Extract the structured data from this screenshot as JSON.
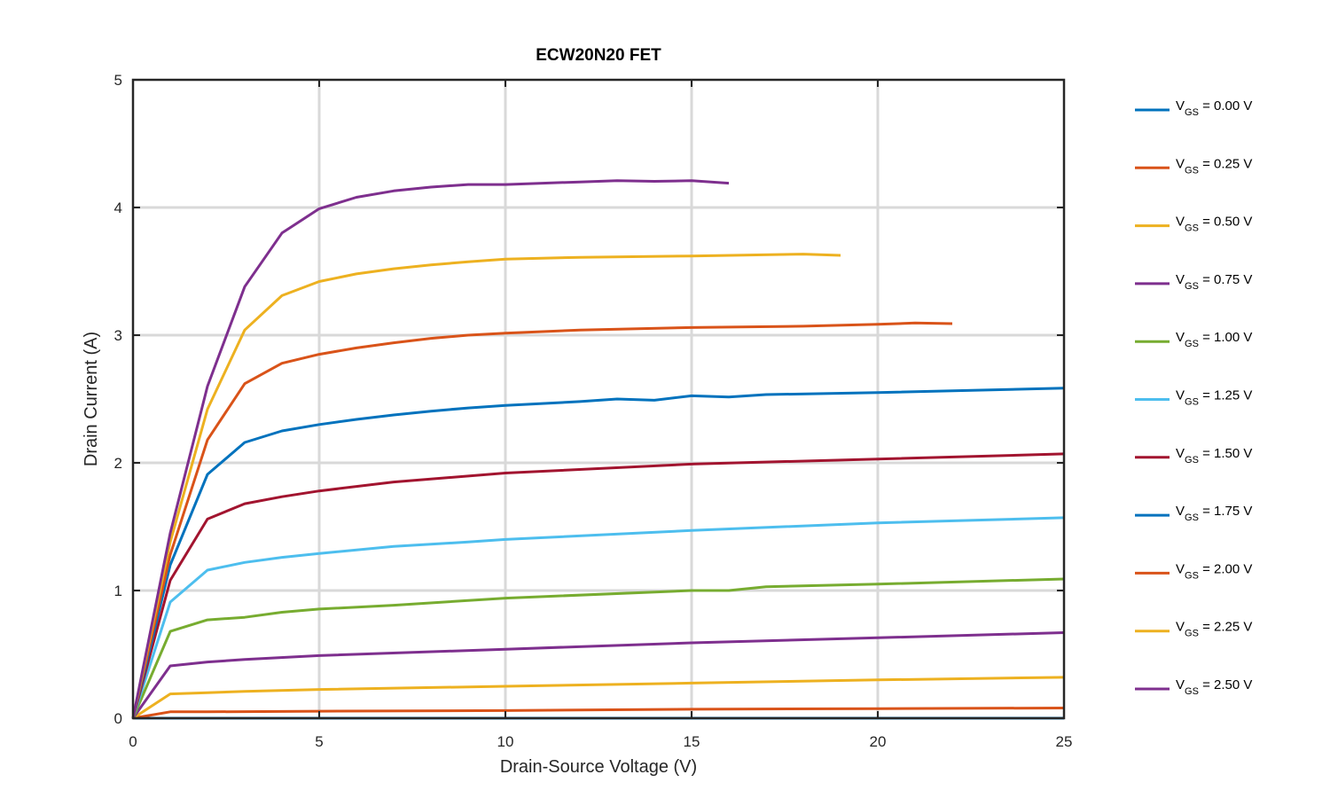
{
  "chart_data": {
    "type": "line",
    "title": "ECW20N20 FET",
    "xlabel": "Drain-Source Voltage (V)",
    "ylabel": "Drain Current (A)",
    "xlim": [
      0,
      25
    ],
    "ylim": [
      0,
      5
    ],
    "xticks": [
      "0",
      "5",
      "10",
      "15",
      "20",
      "25"
    ],
    "yticks": [
      "0",
      "1",
      "2",
      "3",
      "4",
      "5"
    ],
    "grid": true,
    "legend_position": "outside-right",
    "series": [
      {
        "name": "V_GS = 0.00 V",
        "label_main": "V",
        "label_sub": "GS",
        "label_rest": " = 0.00 V",
        "color": "#0072BD",
        "x": [
          0,
          25
        ],
        "y": [
          0,
          0
        ]
      },
      {
        "name": "V_GS = 0.25 V",
        "label_main": "V",
        "label_sub": "GS",
        "label_rest": " = 0.25 V",
        "color": "#D95319",
        "x": [
          0,
          1,
          2,
          5,
          10,
          15,
          20,
          25
        ],
        "y": [
          0,
          0.05,
          0.05,
          0.055,
          0.06,
          0.07,
          0.075,
          0.08
        ]
      },
      {
        "name": "V_GS = 0.50 V",
        "label_main": "V",
        "label_sub": "GS",
        "label_rest": " = 0.50 V",
        "color": "#EDB120",
        "x": [
          0,
          1,
          2,
          3,
          5,
          10,
          15,
          20,
          25
        ],
        "y": [
          0,
          0.19,
          0.2,
          0.21,
          0.225,
          0.25,
          0.275,
          0.3,
          0.32
        ]
      },
      {
        "name": "V_GS = 0.75 V",
        "label_main": "V",
        "label_sub": "GS",
        "label_rest": " = 0.75 V",
        "color": "#7E2F8E",
        "x": [
          0,
          1,
          2,
          3,
          5,
          10,
          15,
          20,
          25
        ],
        "y": [
          0,
          0.41,
          0.44,
          0.46,
          0.49,
          0.54,
          0.59,
          0.63,
          0.67
        ]
      },
      {
        "name": "V_GS = 1.00 V",
        "label_main": "V",
        "label_sub": "GS",
        "label_rest": " = 1.00 V",
        "color": "#77AC30",
        "x": [
          0,
          1,
          2,
          3,
          4,
          5,
          7,
          10,
          15,
          16,
          17,
          20,
          25
        ],
        "y": [
          0,
          0.68,
          0.77,
          0.79,
          0.83,
          0.855,
          0.885,
          0.94,
          1.0,
          1.0,
          1.03,
          1.05,
          1.09
        ]
      },
      {
        "name": "V_GS = 1.25 V",
        "label_main": "V",
        "label_sub": "GS",
        "label_rest": " = 1.25 V",
        "color": "#4DBEEE",
        "x": [
          0,
          1,
          2,
          3,
          4,
          5,
          7,
          9,
          10,
          15,
          20,
          25
        ],
        "y": [
          0,
          0.91,
          1.16,
          1.22,
          1.26,
          1.29,
          1.345,
          1.38,
          1.4,
          1.47,
          1.53,
          1.57
        ]
      },
      {
        "name": "V_GS = 1.50 V",
        "label_main": "V",
        "label_sub": "GS",
        "label_rest": " = 1.50 V",
        "color": "#A2142F",
        "x": [
          0,
          1,
          2,
          3,
          4,
          5,
          7,
          10,
          15,
          20,
          25
        ],
        "y": [
          0,
          1.08,
          1.56,
          1.68,
          1.735,
          1.78,
          1.85,
          1.92,
          1.99,
          2.03,
          2.07
        ]
      },
      {
        "name": "V_GS = 1.75 V",
        "label_main": "V",
        "label_sub": "GS",
        "label_rest": " = 1.75 V",
        "color": "#0072BD",
        "x": [
          0,
          1,
          2,
          3,
          4,
          5,
          6,
          7,
          8,
          9,
          10,
          12,
          13,
          14,
          15,
          16,
          17,
          20,
          25
        ],
        "y": [
          0,
          1.2,
          1.91,
          2.16,
          2.25,
          2.3,
          2.34,
          2.375,
          2.405,
          2.43,
          2.45,
          2.48,
          2.5,
          2.49,
          2.525,
          2.515,
          2.535,
          2.55,
          2.585
        ]
      },
      {
        "name": "V_GS = 2.00 V",
        "label_main": "V",
        "label_sub": "GS",
        "label_rest": " = 2.00 V",
        "color": "#D95319",
        "x": [
          0,
          1,
          2,
          3,
          4,
          5,
          6,
          7,
          8,
          9,
          10,
          12,
          15,
          18,
          20,
          21,
          22
        ],
        "y": [
          0,
          1.28,
          2.18,
          2.62,
          2.78,
          2.85,
          2.9,
          2.94,
          2.975,
          3.0,
          3.015,
          3.04,
          3.06,
          3.07,
          3.085,
          3.095,
          3.09
        ]
      },
      {
        "name": "V_GS = 2.25 V",
        "label_main": "V",
        "label_sub": "GS",
        "label_rest": " = 2.25 V",
        "color": "#EDB120",
        "x": [
          0,
          1,
          2,
          3,
          4,
          5,
          6,
          7,
          8,
          9,
          10,
          12,
          15,
          18,
          19
        ],
        "y": [
          0,
          1.38,
          2.42,
          3.04,
          3.31,
          3.42,
          3.48,
          3.52,
          3.55,
          3.575,
          3.595,
          3.61,
          3.62,
          3.635,
          3.625
        ]
      },
      {
        "name": "V_GS = 2.50 V",
        "label_main": "V",
        "label_sub": "GS",
        "label_rest": " = 2.50 V",
        "color": "#7E2F8E",
        "x": [
          0,
          1,
          2,
          3,
          4,
          5,
          6,
          7,
          8,
          9,
          10,
          11,
          12,
          13,
          14,
          15,
          16
        ],
        "y": [
          0,
          1.45,
          2.6,
          3.38,
          3.8,
          3.99,
          4.08,
          4.13,
          4.16,
          4.18,
          4.18,
          4.19,
          4.2,
          4.21,
          4.205,
          4.21,
          4.19
        ]
      }
    ]
  }
}
